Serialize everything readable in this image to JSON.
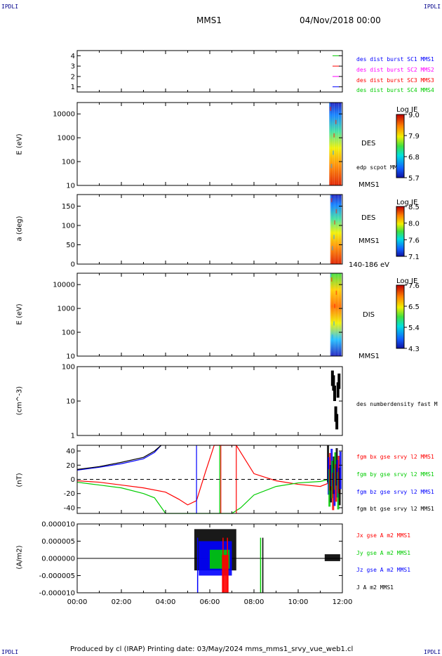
{
  "corner_tl": "IPDLI",
  "corner_tr": "IPDLI",
  "corner_bl": "IPDLI",
  "corner_br": "IPDLI",
  "header": {
    "spacecraft": "MMS1",
    "date": "04/Nov/2018 00:00"
  },
  "footer": "Produced by cl (IRAP)   Printing date: 03/May/2024   mms_mms1_srvy_vue_web1.cl",
  "colors": {
    "blue": "#0000ff",
    "magenta": "#ff00ff",
    "red": "#ff0000",
    "green": "#00cc00",
    "black": "#000000"
  },
  "chart_data": [
    {
      "type": "line",
      "ylim": [
        0.5,
        4.5
      ],
      "yticks": [
        "1",
        "2",
        "3",
        "4"
      ],
      "series": [
        {
          "name": "des dist burst SC1 MMS1",
          "value": 1,
          "color": "blue"
        },
        {
          "name": "des dist burst SC2 MMS2",
          "value": 2,
          "color": "magenta"
        },
        {
          "name": "des dist burst SC3 MMS3",
          "value": 3,
          "color": "red"
        },
        {
          "name": "des dist burst SC4 MMS4",
          "value": 4,
          "color": "green"
        }
      ]
    },
    {
      "type": "heatmap",
      "ylabel": "E (eV)",
      "yscale": "log",
      "ylim": [
        10,
        30000
      ],
      "yticks": [
        "10000",
        "1000",
        "100",
        "10"
      ],
      "x_coverage_hours": [
        11.4,
        11.95
      ],
      "colorbar": {
        "title": "Log JE",
        "ticks": [
          "9.0",
          "7.9",
          "6.8",
          "5.7"
        ]
      },
      "labels": [
        "DES",
        "edp scpot MMS1",
        "MMS1"
      ]
    },
    {
      "type": "heatmap",
      "ylabel": "a (deg)",
      "ylim": [
        0,
        180
      ],
      "yticks": [
        "150",
        "100",
        "50",
        "0"
      ],
      "x_coverage_hours": [
        11.45,
        11.95
      ],
      "colorbar": {
        "title": "Log JE",
        "ticks": [
          "8.5",
          "8.0",
          "7.6",
          "7.1"
        ]
      },
      "labels": [
        "DES",
        "MMS1",
        "140-186 eV"
      ]
    },
    {
      "type": "heatmap",
      "ylabel": "E (eV)",
      "yscale": "log",
      "ylim": [
        10,
        30000
      ],
      "yticks": [
        "10000",
        "1000",
        "100",
        "10"
      ],
      "x_coverage_hours": [
        11.45,
        11.95
      ],
      "colorbar": {
        "title": "Log JE",
        "ticks": [
          "7.6",
          "6.5",
          "5.4",
          "4.3"
        ]
      },
      "labels": [
        "DIS",
        "MMS1"
      ]
    },
    {
      "type": "line",
      "ylabel": "(cm^-3)",
      "yscale": "log",
      "ylim": [
        1,
        100
      ],
      "yticks": [
        "100",
        "10",
        "1"
      ],
      "series": [
        {
          "name": "des numberdensity fast M",
          "color": "black",
          "x": [
            11.55,
            11.6,
            11.65,
            11.7,
            11.75,
            11.8,
            11.85
          ],
          "y": [
            55,
            40,
            20,
            5,
            3,
            25,
            45
          ]
        }
      ]
    },
    {
      "type": "line",
      "ylabel": "(nT)",
      "ylim": [
        -48,
        48
      ],
      "yticks": [
        "40",
        "20",
        "0",
        "-20",
        "-40"
      ],
      "series": [
        {
          "name": "fgm bx gse srvy l2 MMS1",
          "color": "red",
          "x": [
            0,
            1,
            2,
            3,
            4,
            4.6,
            5,
            5.4,
            5.8,
            6.2,
            7.2,
            8,
            9,
            10,
            11,
            11.4
          ],
          "y": [
            -2,
            -4,
            -8,
            -12,
            -18,
            -28,
            -36,
            -30,
            10,
            48,
            48,
            8,
            -2,
            -7,
            -10,
            -5
          ]
        },
        {
          "name": "fgm by gse srvy l2 MMS1",
          "color": "green",
          "x": [
            0,
            1,
            2,
            3,
            3.5,
            4,
            6.5,
            7,
            7.4,
            8,
            9,
            10,
            11,
            11.4
          ],
          "y": [
            -4,
            -8,
            -12,
            -20,
            -26,
            -48,
            -48,
            -48,
            -40,
            -22,
            -10,
            -5,
            -3,
            0
          ]
        },
        {
          "name": "fgm bz gse srvy l2 MMS1",
          "color": "blue",
          "x": [
            0,
            1,
            2,
            3,
            3.5,
            3.8
          ],
          "y": [
            13,
            17,
            22,
            29,
            38,
            48
          ]
        },
        {
          "name": "fgm bt gse srvy l2 MMS1",
          "color": "black",
          "x": [
            0,
            1,
            2,
            3,
            3.5,
            3.8
          ],
          "y": [
            14,
            18,
            24,
            31,
            40,
            48
          ]
        }
      ]
    },
    {
      "type": "line",
      "ylabel": "(A/m2)",
      "ylim": [
        -1e-05,
        1e-05
      ],
      "yticks": [
        "0.000010",
        "0.000005",
        "0.000000",
        "-0.000005",
        "-0.000010"
      ],
      "xlabels": [
        "00:00",
        "02:00",
        "04:00",
        "06:00",
        "08:00",
        "10:00",
        "12:00"
      ],
      "series": [
        {
          "name": "Jx gse A m2 MMS1",
          "color": "red"
        },
        {
          "name": "Jy gse A m2 MMS1",
          "color": "green"
        },
        {
          "name": "Jz gse A m2 MMS1",
          "color": "blue"
        },
        {
          "name": "J A m2 MMS1",
          "color": "black"
        }
      ]
    }
  ]
}
